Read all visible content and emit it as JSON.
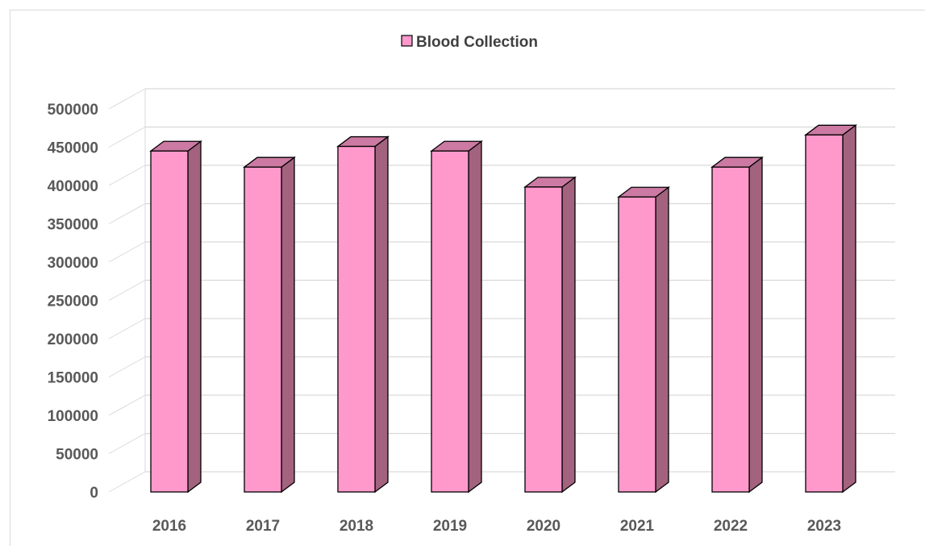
{
  "chart_data": {
    "type": "bar",
    "title": "",
    "xlabel": "",
    "ylabel": "",
    "categories": [
      "2016",
      "2017",
      "2018",
      "2019",
      "2020",
      "2021",
      "2022",
      "2023"
    ],
    "series": [
      {
        "name": "Blood Collection",
        "values": [
          445000,
          424000,
          451000,
          445000,
          398000,
          385000,
          424000,
          466000
        ]
      }
    ],
    "ylim": [
      0,
      500000
    ],
    "yticks": [
      "0",
      "50000",
      "100000",
      "150000",
      "200000",
      "250000",
      "300000",
      "350000",
      "400000",
      "450000",
      "500000"
    ],
    "grid": true,
    "legend_position": "top-center",
    "colors": {
      "bar_front": "#ff99cc",
      "bar_side": "#a3637f",
      "bar_top": "#cc7aa3",
      "bar_outline": "#000000",
      "gridline": "#d9d9d9",
      "tick_text": "#595959"
    }
  }
}
